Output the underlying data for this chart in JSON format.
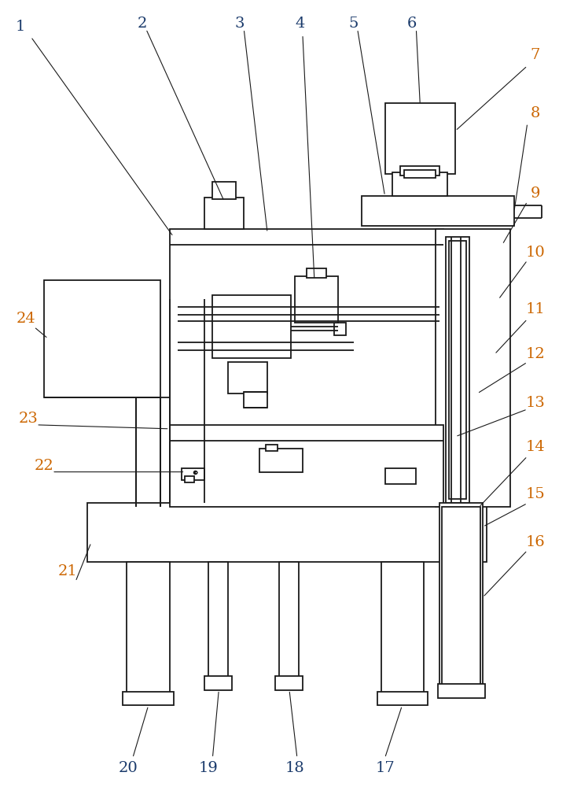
{
  "fig_width": 7.25,
  "fig_height": 10.0,
  "dpi": 100,
  "bg_color": "#ffffff",
  "line_color": "#1a1a1a",
  "label_color_top": "#1a3a6b",
  "label_color_bottom": "#cc6600",
  "label_fontsize": 14,
  "lw": 1.3,
  "lw_thin": 0.8
}
